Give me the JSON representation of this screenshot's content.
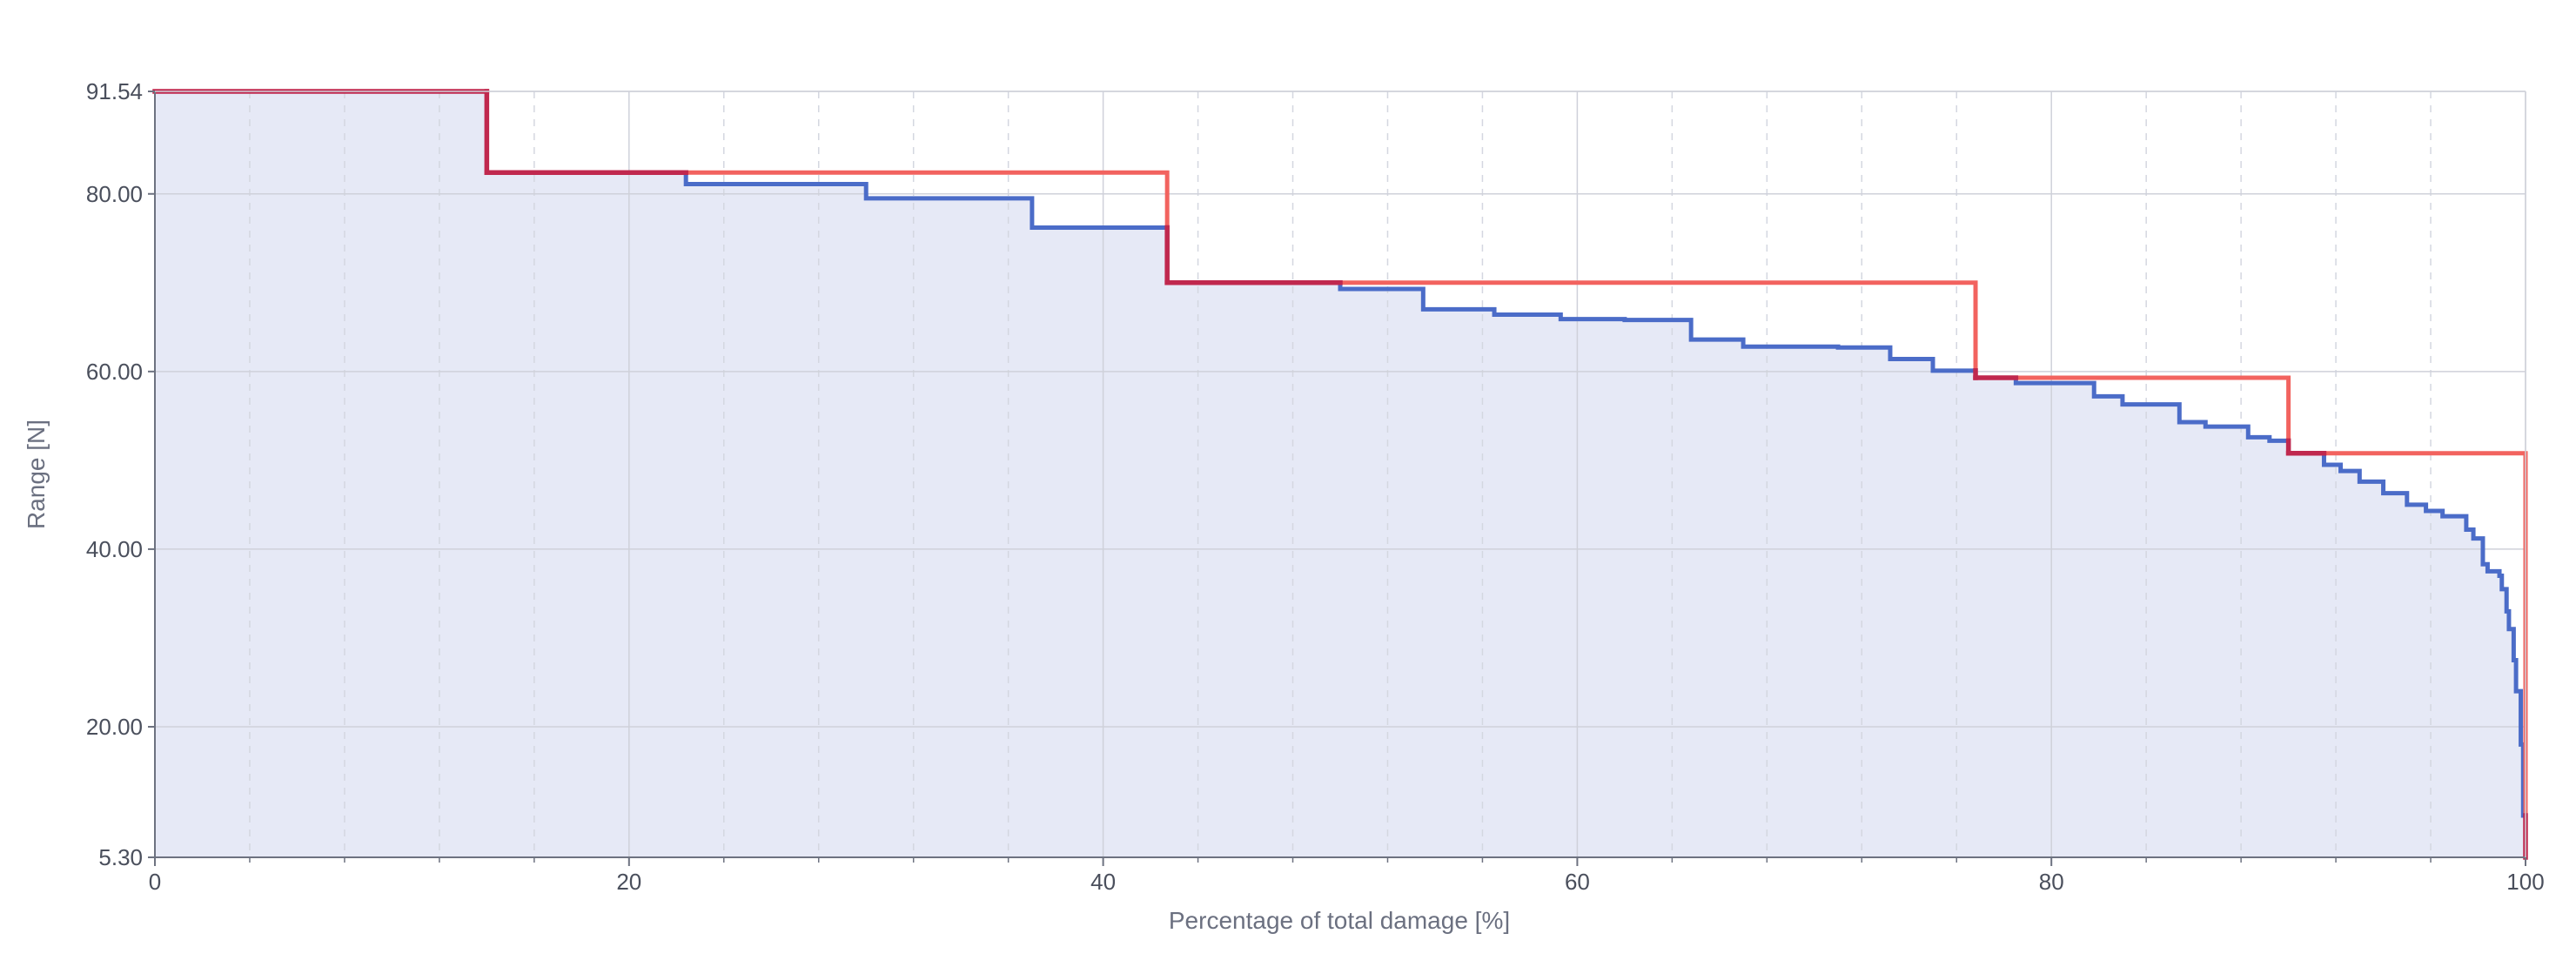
{
  "colors": {
    "background": "#ffffff",
    "plot_fill": "#e6e9f6",
    "series_blue": "#4b6cc8",
    "series_red": "#f2635f",
    "overlap_red": "#c0284e",
    "grid_major": "#cfd1da",
    "grid_minor": "#d4d7e0",
    "axis": "#6d7280",
    "text": "#4a4f5c"
  },
  "chart_data": {
    "type": "line",
    "title": "",
    "xlabel": "Percentage of total damage [%]",
    "ylabel": "Range [N]",
    "xlim": [
      0,
      100
    ],
    "ylim": [
      5.3,
      91.54
    ],
    "x_ticks": [
      {
        "value": 0,
        "label": "0"
      },
      {
        "value": 20,
        "label": "20"
      },
      {
        "value": 40,
        "label": "40"
      },
      {
        "value": 60,
        "label": "60"
      },
      {
        "value": 80,
        "label": "80"
      },
      {
        "value": 100,
        "label": "100"
      }
    ],
    "y_ticks": [
      {
        "value": 5.3,
        "label": "5.30"
      },
      {
        "value": 20.0,
        "label": "20.00"
      },
      {
        "value": 40.0,
        "label": "40.00"
      },
      {
        "value": 60.0,
        "label": "60.00"
      },
      {
        "value": 80.0,
        "label": "80.00"
      },
      {
        "value": 91.54,
        "label": "91.54"
      }
    ],
    "x_minor_step": 4,
    "grid": true,
    "legend": "none",
    "series": [
      {
        "color": "#4b6cc8",
        "step": true,
        "fill": true,
        "x": [
          0,
          14.0,
          22.4,
          30.0,
          37.0,
          42.7,
          50.0,
          53.5,
          56.5,
          59.3,
          62.0,
          64.8,
          67.0,
          71.0,
          73.2,
          75.0,
          76.8,
          78.5,
          81.8,
          83.0,
          85.4,
          86.5,
          88.3,
          89.2,
          90.0,
          91.5,
          92.2,
          93.0,
          94.0,
          95.0,
          95.8,
          96.5,
          97.5,
          97.8,
          98.2,
          98.4,
          98.9,
          99.0,
          99.2,
          99.3,
          99.5,
          99.6,
          99.8,
          99.9,
          100.0
        ],
        "y": [
          91.54,
          82.4,
          81.1,
          79.5,
          76.2,
          70.0,
          69.3,
          67.0,
          66.4,
          65.9,
          65.8,
          63.6,
          62.8,
          62.7,
          61.4,
          60.1,
          59.3,
          58.7,
          57.2,
          56.3,
          54.3,
          53.8,
          52.6,
          52.2,
          50.8,
          49.5,
          48.8,
          47.6,
          46.3,
          45.0,
          44.3,
          43.7,
          42.2,
          41.2,
          38.3,
          37.5,
          37.0,
          35.5,
          33.0,
          31.0,
          27.5,
          24.0,
          18.0,
          10.0,
          5.3
        ]
      },
      {
        "color": "#f2635f",
        "step": true,
        "fill": false,
        "x": [
          0,
          14.0,
          42.7,
          76.8,
          90.0,
          100.0
        ],
        "y": [
          91.54,
          82.4,
          70.0,
          59.3,
          50.8,
          5.3
        ]
      }
    ]
  }
}
